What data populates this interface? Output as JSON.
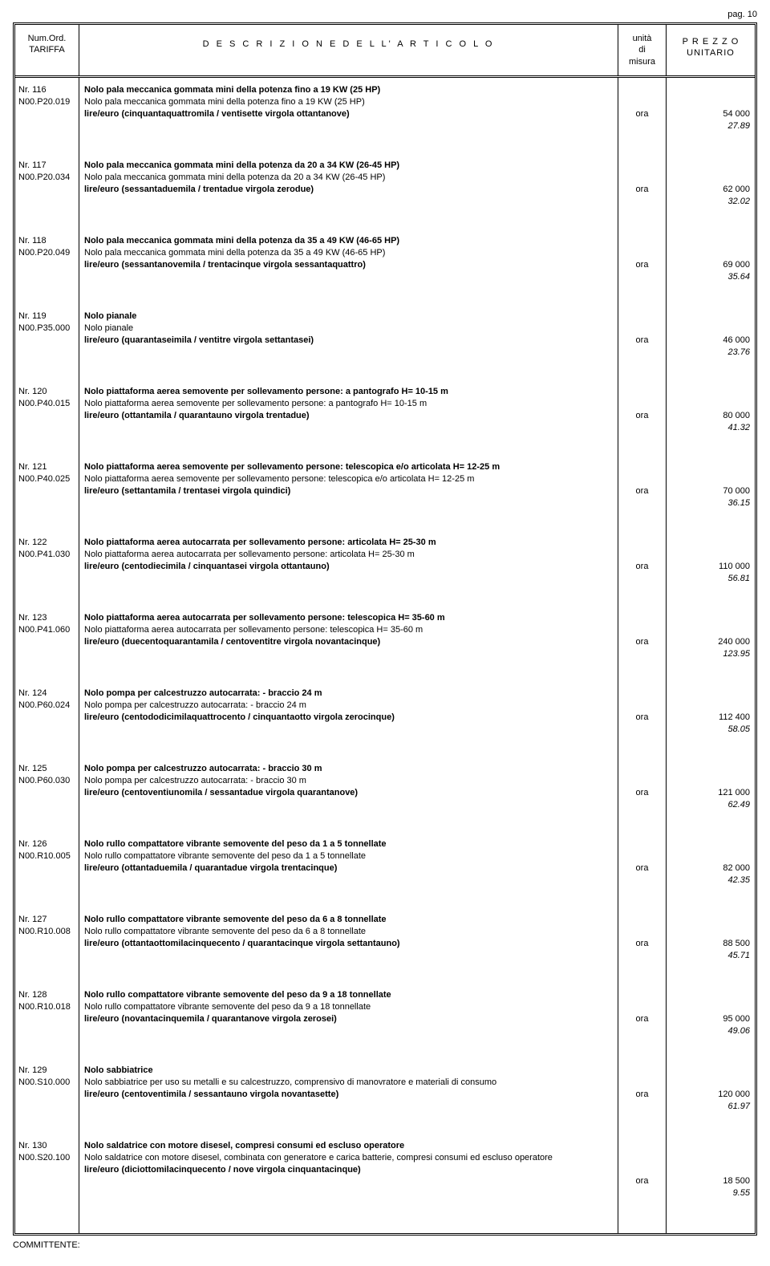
{
  "page_label": "pag. 10",
  "header": {
    "tariffa_l1": "Num.Ord.",
    "tariffa_l2": "TARIFFA",
    "descrizione": "D E S C R I Z I O N E   D E L L' A R T I C O L O",
    "um_l1": "unità",
    "um_l2": "di",
    "um_l3": "misura",
    "prezzo_l1": "P R E Z Z O",
    "prezzo_l2": "UNITARIO"
  },
  "committente": "COMMITTENTE:",
  "items": [
    {
      "nr": "Nr. 116",
      "code": "N00.P20.019",
      "title": "Nolo pala meccanica gommata mini della potenza fino a 19 KW (25 HP)",
      "sub": "Nolo pala meccanica gommata mini della potenza fino a 19 KW (25 HP)",
      "price_line": "lire/euro (cinquantaquattromila / ventisette virgola ottantanove)",
      "um": "ora",
      "lire": "54 000",
      "euro": "27.89",
      "block_h": 76
    },
    {
      "nr": "Nr. 117",
      "code": "N00.P20.034",
      "title": "Nolo pala meccanica gommata mini della potenza da 20 a 34 KW (26-45 HP)",
      "sub": "Nolo pala meccanica gommata mini della potenza da 20 a 34 KW (26-45 HP)",
      "price_line": "lire/euro (sessantaduemila / trentadue virgola zerodue)",
      "um": "ora",
      "lire": "62 000",
      "euro": "32.02",
      "block_h": 76
    },
    {
      "nr": "Nr. 118",
      "code": "N00.P20.049",
      "title": "Nolo pala meccanica gommata mini della potenza da 35 a 49 KW (46-65 HP)",
      "sub": "Nolo pala meccanica gommata mini della potenza da 35 a 49 KW (46-65 HP)",
      "price_line": "lire/euro (sessantanovemila / trentacinque virgola sessantaquattro)",
      "um": "ora",
      "lire": "69 000",
      "euro": "35.64",
      "block_h": 76
    },
    {
      "nr": "Nr. 119",
      "code": "N00.P35.000",
      "title": "Nolo pianale",
      "sub": "Nolo pianale",
      "price_line": "lire/euro (quarantaseimila / ventitre virgola settantasei)",
      "um": "ora",
      "lire": "46 000",
      "euro": "23.76",
      "block_h": 76
    },
    {
      "nr": "Nr. 120",
      "code": "N00.P40.015",
      "title": "Nolo piattaforma aerea semovente per sollevamento persone: a pantografo  H= 10-15 m",
      "sub": "Nolo piattaforma aerea semovente per sollevamento persone: a pantografo  H= 10-15 m",
      "price_line": "lire/euro (ottantamila / quarantauno virgola trentadue)",
      "um": "ora",
      "lire": "80 000",
      "euro": "41.32",
      "block_h": 76
    },
    {
      "nr": "Nr. 121",
      "code": "N00.P40.025",
      "title": "Nolo piattaforma aerea semovente per sollevamento persone: telescopica e/o articolata  H= 12-25 m",
      "sub": "Nolo piattaforma aerea semovente per sollevamento persone: telescopica e/o articolata  H= 12-25 m",
      "price_line": "lire/euro (settantamila / trentasei virgola quindici)",
      "um": "ora",
      "lire": "70 000",
      "euro": "36.15",
      "block_h": 76
    },
    {
      "nr": "Nr. 122",
      "code": "N00.P41.030",
      "title": "Nolo piattaforma aerea autocarrata per sollevamento persone: articolata  H= 25-30 m",
      "sub": "Nolo piattaforma aerea autocarrata per sollevamento persone: articolata  H= 25-30 m",
      "price_line": "lire/euro (centodiecimila / cinquantasei virgola ottantauno)",
      "um": "ora",
      "lire": "110 000",
      "euro": "56.81",
      "block_h": 76
    },
    {
      "nr": "Nr. 123",
      "code": "N00.P41.060",
      "title": "Nolo piattaforma aerea autocarrata per sollevamento persone: telescopica H= 35-60 m",
      "sub": "Nolo piattaforma aerea autocarrata per sollevamento persone: telescopica H= 35-60 m",
      "price_line": "lire/euro (duecentoquarantamila / centoventitre virgola novantacinque)",
      "um": "ora",
      "lire": "240 000",
      "euro": "123.95",
      "block_h": 76
    },
    {
      "nr": "Nr. 124",
      "code": "N00.P60.024",
      "title": "Nolo pompa per calcestruzzo autocarrata: - braccio 24 m",
      "sub": "Nolo pompa per calcestruzzo autocarrata: - braccio 24 m",
      "price_line": "lire/euro (centododicimilaquattrocento / cinquantaotto virgola zerocinque)",
      "um": "ora",
      "lire": "112 400",
      "euro": "58.05",
      "block_h": 76
    },
    {
      "nr": "Nr. 125",
      "code": "N00.P60.030",
      "title": "Nolo pompa per calcestruzzo autocarrata: - braccio 30 m",
      "sub": "Nolo pompa per calcestruzzo autocarrata: - braccio 30 m",
      "price_line": "lire/euro (centoventiunomila / sessantadue virgola quarantanove)",
      "um": "ora",
      "lire": "121 000",
      "euro": "62.49",
      "block_h": 76
    },
    {
      "nr": "Nr. 126",
      "code": "N00.R10.005",
      "title": "Nolo rullo compattatore vibrante semovente del peso da 1 a 5  tonnellate",
      "sub": "Nolo rullo compattatore vibrante semovente del peso da 1 a 5  tonnellate",
      "price_line": "lire/euro (ottantaduemila / quarantadue virgola trentacinque)",
      "um": "ora",
      "lire": "82 000",
      "euro": "42.35",
      "block_h": 76
    },
    {
      "nr": "Nr. 127",
      "code": "N00.R10.008",
      "title": "Nolo rullo compattatore vibrante semovente del peso da 6 a 8  tonnellate",
      "sub": "Nolo rullo compattatore vibrante semovente del peso da 6 a 8  tonnellate",
      "price_line": "lire/euro (ottantaottomilacinquecento / quarantacinque virgola settantauno)",
      "um": "ora",
      "lire": "88 500",
      "euro": "45.71",
      "block_h": 76
    },
    {
      "nr": "Nr. 128",
      "code": "N00.R10.018",
      "title": "Nolo rullo compattatore vibrante semovente del peso da 9 a 18  tonnellate",
      "sub": "Nolo rullo compattatore vibrante semovente del peso da 9 a 18  tonnellate",
      "price_line": "lire/euro (novantacinquemila / quarantanove virgola zerosei)",
      "um": "ora",
      "lire": "95 000",
      "euro": "49.06",
      "block_h": 76
    },
    {
      "nr": "Nr. 129",
      "code": "N00.S10.000",
      "title": "Nolo sabbiatrice",
      "sub": "Nolo sabbiatrice per uso su metalli e su calcestruzzo, comprensivo di manovratore e materiali di consumo",
      "price_line": "lire/euro (centoventimila / sessantauno virgola novantasette)",
      "um": "ora",
      "lire": "120 000",
      "euro": "61.97",
      "block_h": 76
    },
    {
      "nr": "Nr. 130",
      "code": "N00.S20.100",
      "title": "Nolo saldatrice con motore disesel, compresi consumi ed escluso operatore",
      "sub": "Nolo saldatrice con motore disesel, combinata con generatore e carica batterie, compresi consumi ed escluso operatore",
      "price_line": "lire/euro (diciottomilacinquecento / nove virgola cinquantacinque)",
      "um": "ora",
      "lire": "18 500",
      "euro": "9.55",
      "block_h": 90,
      "multiline_sub": true
    }
  ]
}
